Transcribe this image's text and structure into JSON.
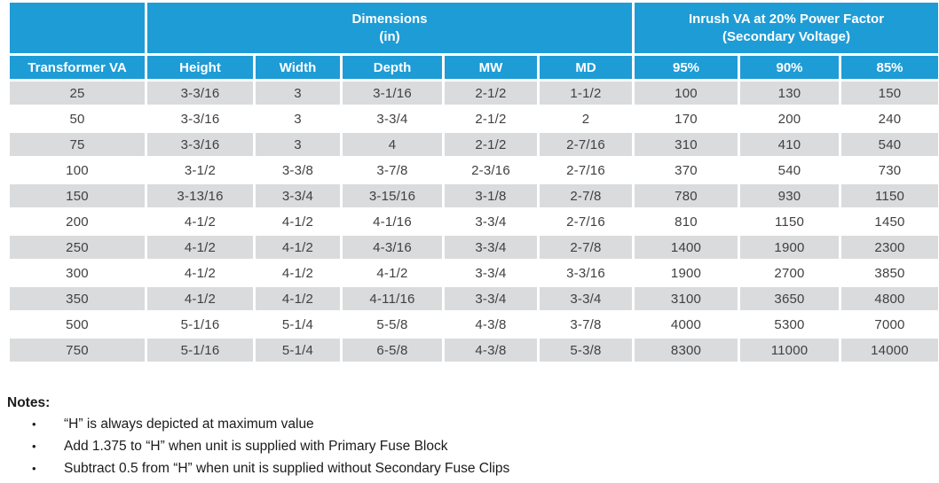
{
  "colors": {
    "header_blue": "#1E9CD6",
    "header_text": "#FFFFFF",
    "row_shade": "#D9DBDC",
    "body_text": "#414042",
    "notes_text": "#1C1A1B"
  },
  "table": {
    "group_headers": {
      "dimensions": "Dimensions\n(in)",
      "inrush": "Inrush VA at 20% Power Factor\n(Secondary Voltage)"
    },
    "columns": [
      "Transformer VA",
      "Height",
      "Width",
      "Depth",
      "MW",
      "MD",
      "95%",
      "90%",
      "85%"
    ],
    "rows": [
      [
        "25",
        "3-3/16",
        "3",
        "3-1/16",
        "2-1/2",
        "1-1/2",
        "100",
        "130",
        "150"
      ],
      [
        "50",
        "3-3/16",
        "3",
        "3-3/4",
        "2-1/2",
        "2",
        "170",
        "200",
        "240"
      ],
      [
        "75",
        "3-3/16",
        "3",
        "4",
        "2-1/2",
        "2-7/16",
        "310",
        "410",
        "540"
      ],
      [
        "100",
        "3-1/2",
        "3-3/8",
        "3-7/8",
        "2-3/16",
        "2-7/16",
        "370",
        "540",
        "730"
      ],
      [
        "150",
        "3-13/16",
        "3-3/4",
        "3-15/16",
        "3-1/8",
        "2-7/8",
        "780",
        "930",
        "1150"
      ],
      [
        "200",
        "4-1/2",
        "4-1/2",
        "4-1/16",
        "3-3/4",
        "2-7/16",
        "810",
        "1150",
        "1450"
      ],
      [
        "250",
        "4-1/2",
        "4-1/2",
        "4-3/16",
        "3-3/4",
        "2-7/8",
        "1400",
        "1900",
        "2300"
      ],
      [
        "300",
        "4-1/2",
        "4-1/2",
        "4-1/2",
        "3-3/4",
        "3-3/16",
        "1900",
        "2700",
        "3850"
      ],
      [
        "350",
        "4-1/2",
        "4-1/2",
        "4-11/16",
        "3-3/4",
        "3-3/4",
        "3100",
        "3650",
        "4800"
      ],
      [
        "500",
        "5-1/16",
        "5-1/4",
        "5-5/8",
        "4-3/8",
        "3-7/8",
        "4000",
        "5300",
        "7000"
      ],
      [
        "750",
        "5-1/16",
        "5-1/4",
        "6-5/8",
        "4-3/8",
        "5-3/8",
        "8300",
        "11000",
        "14000"
      ]
    ]
  },
  "notes": {
    "title": "Notes:",
    "bullet": "•",
    "items": [
      "“H” is always depicted at maximum value",
      "Add 1.375 to “H” when unit is supplied with Primary Fuse Block",
      "Subtract 0.5 from “H” when unit is supplied without Secondary Fuse Clips"
    ]
  }
}
